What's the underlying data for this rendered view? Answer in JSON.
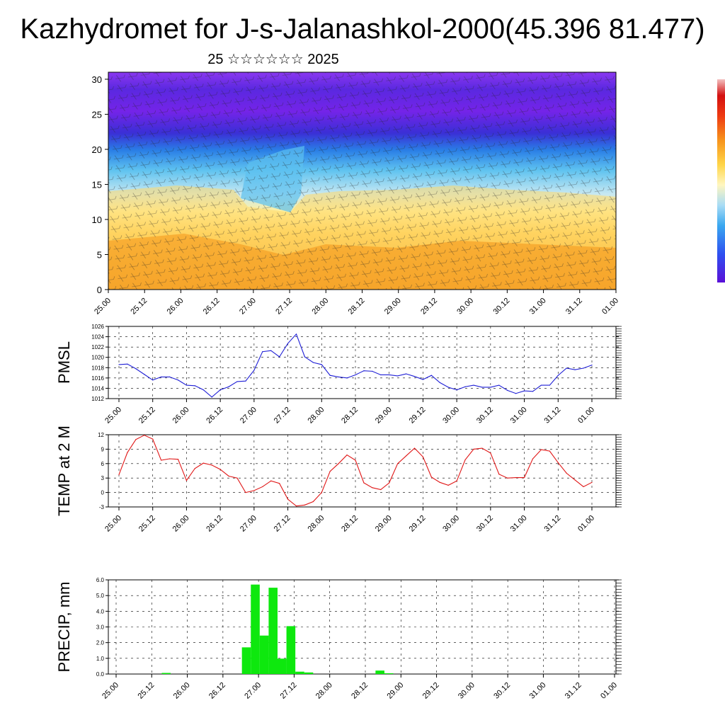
{
  "title": "Kazhydromet for J-s-Jalanashkol-2000(45.396 81.477)",
  "subtitle": "25 ☆☆☆☆☆☆ 2025",
  "time_ticks": [
    "25.00",
    "25.12",
    "26.00",
    "26.12",
    "27.00",
    "27.12",
    "28.00",
    "28.12",
    "29.00",
    "29.12",
    "30.00",
    "30.12",
    "31.00",
    "31.12",
    "01.00"
  ],
  "chart_data": [
    {
      "type": "heatmap",
      "panel": "cross-section",
      "title": "",
      "ylabel": "",
      "y_ticks": [
        "0",
        "5",
        "10",
        "15",
        "20",
        "25",
        "30"
      ],
      "ylim": [
        0,
        31
      ],
      "overlay": "wind barbs",
      "colorbar": "rainbow (violet to red), unlabeled",
      "colors": {
        "low_levels": "#f39a1e",
        "mid_levels": "#ffe98a",
        "high_levels": "#6b1fe0"
      }
    },
    {
      "type": "line",
      "panel": "pmsl",
      "ylabel": "PMSL",
      "ylim": [
        1012,
        1026
      ],
      "y_ticks": [
        "1012",
        "1014",
        "1016",
        "1018",
        "1020",
        "1022",
        "1024",
        "1026"
      ],
      "color": "#1f1fd6",
      "values": [
        1018.6,
        1018.7,
        1017.8,
        1016.7,
        1015.6,
        1016.2,
        1016.2,
        1015.6,
        1014.6,
        1014.5,
        1013.7,
        1012.3,
        1013.7,
        1014.3,
        1015.3,
        1015.4,
        1017.5,
        1021.1,
        1021.3,
        1020.1,
        1022.7,
        1024.5,
        1020.1,
        1019.0,
        1018.6,
        1016.5,
        1016.2,
        1016.0,
        1016.6,
        1017.4,
        1017.3,
        1016.6,
        1016.6,
        1016.4,
        1016.8,
        1016.3,
        1015.7,
        1016.5,
        1015.1,
        1014.2,
        1013.7,
        1014.3,
        1014.6,
        1014.2,
        1014.2,
        1014.6,
        1013.6,
        1013.0,
        1013.5,
        1013.4,
        1014.6,
        1014.6,
        1016.5,
        1017.9,
        1017.6,
        1017.9,
        1018.5
      ]
    },
    {
      "type": "line",
      "panel": "temp",
      "ylabel": "TEMP at 2 M",
      "ylim": [
        -3,
        12
      ],
      "y_ticks": [
        "-3",
        "0",
        "3",
        "6",
        "9",
        "12"
      ],
      "color": "#e01616",
      "values": [
        3.7,
        8.3,
        11.0,
        11.9,
        11.1,
        6.7,
        7.0,
        6.9,
        2.5,
        5.0,
        6.1,
        5.7,
        4.8,
        3.4,
        3.0,
        0.0,
        0.4,
        1.2,
        2.4,
        1.9,
        -1.4,
        -2.8,
        -2.6,
        -1.9,
        0.0,
        4.4,
        6.0,
        7.8,
        6.7,
        2.0,
        1.0,
        0.6,
        2.0,
        6.0,
        7.6,
        9.2,
        7.4,
        3.2,
        2.1,
        1.5,
        2.4,
        6.8,
        9.0,
        9.2,
        8.2,
        3.8,
        3.0,
        3.1,
        3.1,
        7.0,
        8.9,
        8.6,
        6.2,
        4.0,
        2.6,
        1.2,
        2.1
      ]
    },
    {
      "type": "bar",
      "panel": "precip",
      "ylabel": "PRECIP, mm",
      "ylim": [
        0,
        6
      ],
      "y_ticks": [
        "0.0",
        "1.0",
        "2.0",
        "3.0",
        "4.0",
        "5.0",
        "6.0"
      ],
      "color": "#0ee80e",
      "values": [
        0,
        0,
        0,
        0,
        0,
        0,
        0.07,
        0,
        0,
        0,
        0,
        0,
        0,
        0,
        0,
        1.7,
        5.7,
        2.45,
        5.5,
        0.98,
        3.05,
        0.15,
        0.1,
        0,
        0,
        0,
        0,
        0,
        0,
        0,
        0.22,
        0.05,
        0,
        0,
        0,
        0,
        0,
        0,
        0,
        0,
        0,
        0,
        0,
        0,
        0,
        0,
        0,
        0,
        0,
        0,
        0,
        0,
        0,
        0,
        0,
        0,
        0
      ]
    }
  ]
}
